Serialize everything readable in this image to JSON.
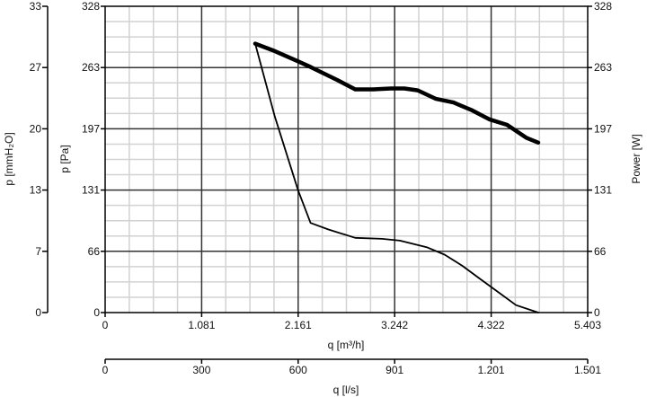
{
  "chart_data": {
    "type": "line",
    "x_axis": {
      "label": "q [m³/h]",
      "ticks": [
        "0",
        "1.081",
        "2.161",
        "3.242",
        "4.322",
        "5.403"
      ],
      "range": [
        0,
        5.403
      ]
    },
    "x2_axis": {
      "label": "q [l/s]",
      "ticks": [
        "0",
        "300",
        "600",
        "901",
        "1.201",
        "1.501"
      ]
    },
    "y_left_outer": {
      "label": "p [mmH₂O]",
      "ticks": [
        "0",
        "7",
        "13",
        "20",
        "27",
        "33"
      ]
    },
    "y_left": {
      "label": "p [Pa]",
      "ticks": [
        "0",
        "66",
        "131",
        "197",
        "263",
        "328"
      ],
      "range": [
        0,
        328
      ]
    },
    "y_right": {
      "label": "Power [W]",
      "ticks": [
        "0",
        "66",
        "131",
        "197",
        "263",
        "328"
      ],
      "range": [
        0,
        328
      ]
    },
    "grid": true,
    "series": [
      {
        "axis": "left",
        "x": [
          1.68,
          1.9,
          2.16,
          2.3,
          2.6,
          2.8,
          3.0,
          3.2,
          3.35,
          3.5,
          3.7,
          3.9,
          4.1,
          4.3,
          4.5,
          4.72,
          4.85
        ],
        "y": [
          288,
          280,
          269,
          263,
          249,
          239,
          239,
          240,
          240,
          238,
          229,
          225,
          217,
          207,
          201,
          187,
          182
        ],
        "style": "thick"
      },
      {
        "axis": "right",
        "x": [
          1.68,
          1.9,
          2.16,
          2.3,
          2.5,
          2.8,
          3.1,
          3.3,
          3.6,
          3.8,
          4.0,
          4.2,
          4.4,
          4.6,
          4.85
        ],
        "y": [
          288,
          210,
          131,
          96,
          89,
          80,
          79,
          77,
          70,
          62,
          50,
          36,
          22,
          8,
          0
        ],
        "style": "thin"
      }
    ]
  }
}
